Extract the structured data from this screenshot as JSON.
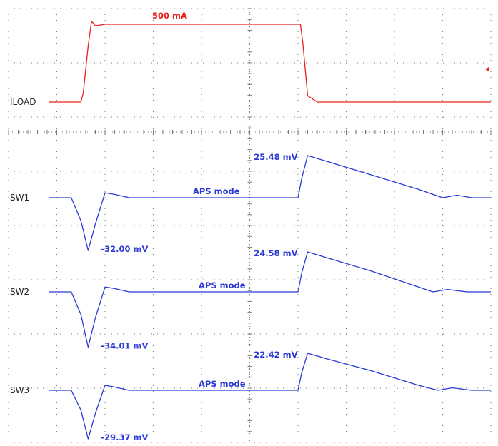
{
  "colors": {
    "iload": "#e8201a",
    "sw": "#2a3ad6",
    "grid": "#7a7a7a",
    "text": "#222222"
  },
  "chart_data": {
    "type": "line",
    "title": "",
    "xlabel": "",
    "ylabel": "",
    "grid": true,
    "legend": "none",
    "x": [
      0,
      1.5,
      1.65,
      2.0,
      2.5,
      3.0,
      3.5,
      4.0,
      5.0,
      6.0,
      7.0,
      8.0,
      9.0,
      10.0
    ],
    "series": [
      {
        "name": "ILOAD",
        "unit": "mA",
        "x": [
          0,
          1.5,
          1.55,
          1.65,
          1.72,
          1.8,
          2.0,
          3.5,
          5.0,
          6.05,
          6.1,
          6.2,
          6.4,
          8.0,
          10.0
        ],
        "values": [
          0,
          0,
          60,
          360,
          520,
          490,
          500,
          500,
          500,
          500,
          380,
          40,
          0,
          0,
          0
        ],
        "annotations": [
          {
            "text": "500 mA",
            "x": 3.0,
            "y": 500
          }
        ]
      },
      {
        "name": "SW1",
        "unit": "mV",
        "x": [
          0,
          1.3,
          1.5,
          1.65,
          1.8,
          2.0,
          2.2,
          2.5,
          3.0,
          5.0,
          6.0,
          6.08,
          6.2,
          6.6,
          7.5,
          8.5,
          9.0,
          9.3,
          9.6,
          10.0
        ],
        "values": [
          0,
          0,
          -14,
          -32.0,
          -16,
          3,
          2,
          0,
          0,
          0,
          0,
          12,
          25.48,
          22,
          14,
          5,
          0,
          1.5,
          0,
          0
        ],
        "annotations": [
          {
            "text": "25.48 mV",
            "x": 6.2,
            "y": 25.48
          },
          {
            "text": "-32.00 mV",
            "x": 1.65,
            "y": -32.0
          },
          {
            "text": "APS mode",
            "x": 4.0,
            "y": 0
          }
        ]
      },
      {
        "name": "SW2",
        "unit": "mV",
        "x": [
          0,
          1.3,
          1.5,
          1.65,
          1.8,
          2.0,
          2.2,
          2.5,
          3.0,
          5.0,
          6.0,
          6.08,
          6.2,
          6.6,
          7.5,
          8.5,
          8.8,
          9.1,
          9.5,
          10.0
        ],
        "values": [
          0,
          0,
          -14,
          -34.01,
          -16,
          3,
          2,
          0,
          0,
          0,
          0,
          12,
          24.58,
          21,
          13,
          3,
          0,
          1.5,
          0,
          0
        ],
        "annotations": [
          {
            "text": "24.58 mV",
            "x": 6.2,
            "y": 24.58
          },
          {
            "text": "-34.01 mV",
            "x": 1.65,
            "y": -34.01
          },
          {
            "text": "APS mode",
            "x": 4.5,
            "y": 0
          }
        ]
      },
      {
        "name": "SW3",
        "unit": "mV",
        "x": [
          0,
          1.3,
          1.5,
          1.65,
          1.8,
          2.0,
          2.2,
          2.5,
          3.0,
          5.0,
          6.0,
          6.08,
          6.2,
          6.6,
          7.5,
          8.5,
          8.9,
          9.2,
          9.6,
          10.0
        ],
        "values": [
          0,
          0,
          -12,
          -29.37,
          -14,
          3,
          2,
          0,
          0,
          0,
          0,
          11,
          22.42,
          19,
          12,
          3,
          0,
          1.5,
          0,
          0
        ],
        "annotations": [
          {
            "text": "22.42 mV",
            "x": 6.2,
            "y": 22.42
          },
          {
            "text": "-29.37 mV",
            "x": 1.65,
            "y": -29.37
          },
          {
            "text": "APS mode",
            "x": 4.5,
            "y": 0
          }
        ]
      }
    ]
  }
}
